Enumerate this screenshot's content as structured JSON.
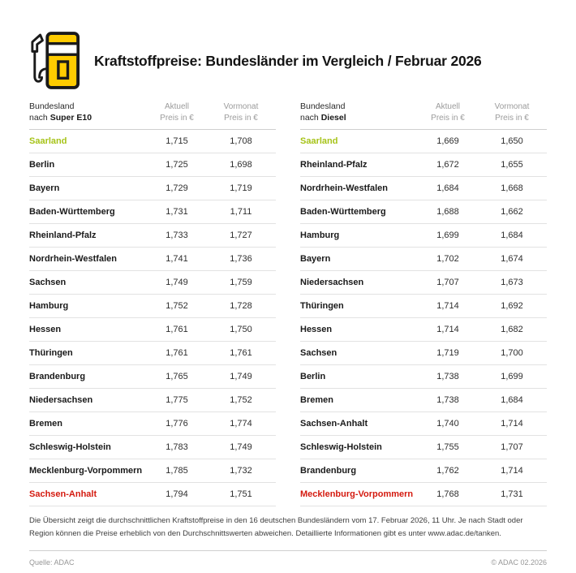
{
  "colors": {
    "accent": "#FFCC00",
    "lowest": "#a6c318",
    "highest": "#d41a0f"
  },
  "header": {
    "title": "Kraftstoffpreise: Bundesländer im Vergleich / Februar 2026",
    "icon": "fuel-pump-icon"
  },
  "chart_data": [
    {
      "type": "table",
      "id": "super-e10",
      "fuel_label": "Super E10",
      "header": {
        "col1_line1": "Bundesland",
        "col1_prefix": "nach ",
        "col2_line1": "Aktuell",
        "col2_line2": "Preis in €",
        "col3_line1": "Vormonat",
        "col3_line2": "Preis in €"
      },
      "rows": [
        {
          "name": "Saarland",
          "current": "1,715",
          "previous": "1,708",
          "highlight": "lowest"
        },
        {
          "name": "Berlin",
          "current": "1,725",
          "previous": "1,698"
        },
        {
          "name": "Bayern",
          "current": "1,729",
          "previous": "1,719"
        },
        {
          "name": "Baden-Württemberg",
          "current": "1,731",
          "previous": "1,711"
        },
        {
          "name": "Rheinland-Pfalz",
          "current": "1,733",
          "previous": "1,727"
        },
        {
          "name": "Nordrhein-Westfalen",
          "current": "1,741",
          "previous": "1,736"
        },
        {
          "name": "Sachsen",
          "current": "1,749",
          "previous": "1,759"
        },
        {
          "name": "Hamburg",
          "current": "1,752",
          "previous": "1,728"
        },
        {
          "name": "Hessen",
          "current": "1,761",
          "previous": "1,750"
        },
        {
          "name": "Thüringen",
          "current": "1,761",
          "previous": "1,761"
        },
        {
          "name": "Brandenburg",
          "current": "1,765",
          "previous": "1,749"
        },
        {
          "name": "Niedersachsen",
          "current": "1,775",
          "previous": "1,752"
        },
        {
          "name": "Bremen",
          "current": "1,776",
          "previous": "1,774"
        },
        {
          "name": "Schleswig-Holstein",
          "current": "1,783",
          "previous": "1,749"
        },
        {
          "name": "Mecklenburg-Vorpommern",
          "current": "1,785",
          "previous": "1,732"
        },
        {
          "name": "Sachsen-Anhalt",
          "current": "1,794",
          "previous": "1,751",
          "highlight": "highest"
        }
      ]
    },
    {
      "type": "table",
      "id": "diesel",
      "fuel_label": "Diesel",
      "header": {
        "col1_line1": "Bundesland",
        "col1_prefix": "nach ",
        "col2_line1": "Aktuell",
        "col2_line2": "Preis in €",
        "col3_line1": "Vormonat",
        "col3_line2": "Preis in €"
      },
      "rows": [
        {
          "name": "Saarland",
          "current": "1,669",
          "previous": "1,650",
          "highlight": "lowest"
        },
        {
          "name": "Rheinland-Pfalz",
          "current": "1,672",
          "previous": "1,655"
        },
        {
          "name": "Nordrhein-Westfalen",
          "current": "1,684",
          "previous": "1,668"
        },
        {
          "name": "Baden-Württemberg",
          "current": "1,688",
          "previous": "1,662"
        },
        {
          "name": "Hamburg",
          "current": "1,699",
          "previous": "1,684"
        },
        {
          "name": "Bayern",
          "current": "1,702",
          "previous": "1,674"
        },
        {
          "name": "Niedersachsen",
          "current": "1,707",
          "previous": "1,673"
        },
        {
          "name": "Thüringen",
          "current": "1,714",
          "previous": "1,692"
        },
        {
          "name": "Hessen",
          "current": "1,714",
          "previous": "1,682"
        },
        {
          "name": "Sachsen",
          "current": "1,719",
          "previous": "1,700"
        },
        {
          "name": "Berlin",
          "current": "1,738",
          "previous": "1,699"
        },
        {
          "name": "Bremen",
          "current": "1,738",
          "previous": "1,684"
        },
        {
          "name": "Sachsen-Anhalt",
          "current": "1,740",
          "previous": "1,714"
        },
        {
          "name": "Schleswig-Holstein",
          "current": "1,755",
          "previous": "1,707"
        },
        {
          "name": "Brandenburg",
          "current": "1,762",
          "previous": "1,714"
        },
        {
          "name": "Mecklenburg-Vorpommern",
          "current": "1,768",
          "previous": "1,731",
          "highlight": "highest"
        }
      ]
    }
  ],
  "footnote": {
    "text": "Die Übersicht zeigt die durchschnittlichen Kraftstoffpreise in den 16 deutschen Bundesländern vom 17. Februar 2026, 11 Uhr. Je nach Stadt oder Region können die Preise erheblich von den Durchschnittswerten abweichen. Detaillierte Informationen gibt es unter www.adac.de/tanken."
  },
  "footer": {
    "source": "Quelle: ADAC",
    "copyright": "© ADAC 02.2026"
  }
}
